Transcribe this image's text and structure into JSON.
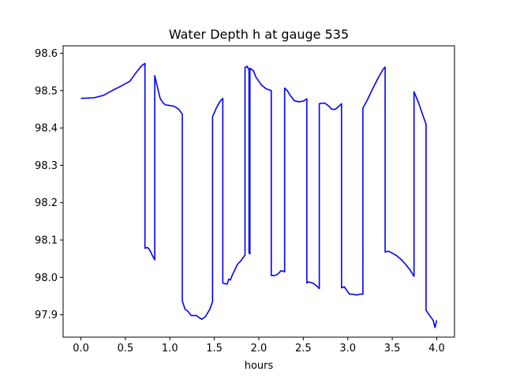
{
  "chart_data": {
    "type": "line",
    "title": "Water Depth h at gauge 535",
    "xlabel": "hours",
    "ylabel": "",
    "xlim": [
      -0.2,
      4.2
    ],
    "ylim": [
      97.84,
      98.62
    ],
    "xticks": [
      0.0,
      0.5,
      1.0,
      1.5,
      2.0,
      2.5,
      3.0,
      3.5,
      4.0
    ],
    "xtick_labels": [
      "0.0",
      "0.5",
      "1.0",
      "1.5",
      "2.0",
      "2.5",
      "3.0",
      "3.5",
      "4.0"
    ],
    "yticks": [
      97.9,
      98.0,
      98.1,
      98.2,
      98.3,
      98.4,
      98.5,
      98.6
    ],
    "ytick_labels": [
      "97.9",
      "98.0",
      "98.1",
      "98.2",
      "98.3",
      "98.4",
      "98.5",
      "98.6"
    ],
    "grid": false,
    "series": [
      {
        "name": "",
        "color": "#0000ff",
        "x": [
          0.0,
          0.15,
          0.25,
          0.35,
          0.45,
          0.55,
          0.62,
          0.68,
          0.72,
          0.72,
          0.745,
          0.76,
          0.78,
          0.8,
          0.83,
          0.83,
          0.86,
          0.89,
          0.92,
          0.95,
          1.0,
          1.05,
          1.1,
          1.14,
          1.14,
          1.17,
          1.2,
          1.24,
          1.3,
          1.33,
          1.36,
          1.4,
          1.45,
          1.48,
          1.48,
          1.52,
          1.56,
          1.595,
          1.595,
          1.62,
          1.645,
          1.66,
          1.68,
          1.7,
          1.73,
          1.76,
          1.8,
          1.845,
          1.845,
          1.87,
          1.89,
          1.89,
          1.9,
          1.9,
          1.94,
          1.97,
          2.03,
          2.08,
          2.14,
          2.14,
          2.18,
          2.21,
          2.25,
          2.29,
          2.29,
          2.32,
          2.36,
          2.4,
          2.45,
          2.5,
          2.54,
          2.54,
          2.56,
          2.6,
          2.62,
          2.66,
          2.68,
          2.68,
          2.74,
          2.79,
          2.82,
          2.86,
          2.9,
          2.93,
          2.93,
          2.96,
          2.99,
          3.02,
          3.05,
          3.1,
          3.14,
          3.17,
          3.17,
          3.22,
          3.28,
          3.34,
          3.4,
          3.42,
          3.42,
          3.46,
          3.5,
          3.55,
          3.6,
          3.65,
          3.7,
          3.745,
          3.745,
          3.8,
          3.85,
          3.88,
          3.88,
          3.92,
          3.96,
          3.98,
          4.0
        ],
        "y": [
          98.479,
          98.481,
          98.487,
          98.5,
          98.512,
          98.525,
          98.548,
          98.566,
          98.573,
          98.078,
          98.08,
          98.078,
          98.07,
          98.06,
          98.047,
          98.54,
          98.51,
          98.48,
          98.468,
          98.462,
          98.46,
          98.458,
          98.45,
          98.437,
          97.937,
          97.915,
          97.91,
          97.898,
          97.898,
          97.892,
          97.888,
          97.895,
          97.915,
          97.935,
          98.43,
          98.452,
          98.47,
          98.479,
          97.985,
          97.983,
          97.982,
          97.995,
          97.993,
          98.005,
          98.02,
          98.035,
          98.045,
          98.06,
          98.562,
          98.565,
          98.555,
          98.065,
          98.063,
          98.56,
          98.553,
          98.535,
          98.515,
          98.505,
          98.5,
          98.005,
          98.005,
          98.008,
          98.018,
          98.015,
          98.507,
          98.5,
          98.485,
          98.473,
          98.47,
          98.472,
          98.478,
          97.985,
          97.988,
          97.985,
          97.983,
          97.975,
          97.97,
          98.465,
          98.467,
          98.458,
          98.45,
          98.45,
          98.458,
          98.465,
          97.972,
          97.975,
          97.965,
          97.955,
          97.955,
          97.953,
          97.955,
          97.955,
          98.453,
          98.475,
          98.505,
          98.533,
          98.558,
          98.563,
          98.068,
          98.07,
          98.065,
          98.058,
          98.048,
          98.035,
          98.02,
          98.003,
          98.497,
          98.465,
          98.43,
          98.41,
          97.912,
          97.898,
          97.885,
          97.866,
          97.885
        ]
      }
    ]
  }
}
